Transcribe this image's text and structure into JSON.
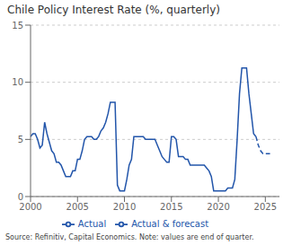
{
  "chart_data": {
    "type": "line",
    "title": "Chile Policy Interest Rate (%, quarterly)",
    "annotations": [
      "Source: Refinitiv, Capital Economics. Note: values are end of quarter."
    ],
    "xlim": [
      2000,
      2026.5
    ],
    "xticks": [
      2000,
      2005,
      2010,
      2015,
      2020,
      2025
    ],
    "ylim": [
      0,
      15
    ],
    "yticks": [
      0,
      5,
      10,
      15
    ],
    "grid": "y",
    "legend": "bottom",
    "series": [
      {
        "name": "Actual",
        "color": "#2255aa",
        "line_style": "solid",
        "x": [
          2000.0,
          2000.25,
          2000.5,
          2000.75,
          2001.0,
          2001.25,
          2001.5,
          2001.75,
          2002.0,
          2002.25,
          2002.5,
          2002.75,
          2003.0,
          2003.25,
          2003.5,
          2003.75,
          2004.0,
          2004.25,
          2004.5,
          2004.75,
          2005.0,
          2005.25,
          2005.5,
          2005.75,
          2006.0,
          2006.25,
          2006.5,
          2006.75,
          2007.0,
          2007.25,
          2007.5,
          2007.75,
          2008.0,
          2008.25,
          2008.5,
          2008.75,
          2009.0,
          2009.25,
          2009.5,
          2009.75,
          2010.0,
          2010.25,
          2010.5,
          2010.75,
          2011.0,
          2011.25,
          2011.5,
          2011.75,
          2012.0,
          2012.25,
          2012.5,
          2012.75,
          2013.0,
          2013.25,
          2013.5,
          2013.75,
          2014.0,
          2014.25,
          2014.5,
          2014.75,
          2015.0,
          2015.25,
          2015.5,
          2015.75,
          2016.0,
          2016.25,
          2016.5,
          2016.75,
          2017.0,
          2017.25,
          2017.5,
          2017.75,
          2018.0,
          2018.25,
          2018.5,
          2018.75,
          2019.0,
          2019.25,
          2019.5,
          2019.75,
          2020.0,
          2020.25,
          2020.5,
          2020.75,
          2021.0,
          2021.25,
          2021.5,
          2021.75,
          2022.0,
          2022.25,
          2022.5,
          2022.75,
          2023.0,
          2023.25,
          2023.5,
          2023.75,
          2024.0
        ],
        "values": [
          5.25,
          5.5,
          5.5,
          5.0,
          4.25,
          4.5,
          6.5,
          5.5,
          4.75,
          4.0,
          3.75,
          3.0,
          3.0,
          2.75,
          2.25,
          1.75,
          1.75,
          1.75,
          2.25,
          2.25,
          3.25,
          3.25,
          4.0,
          5.0,
          5.25,
          5.25,
          5.25,
          5.0,
          5.0,
          5.25,
          5.75,
          6.0,
          6.5,
          7.25,
          8.25,
          8.25,
          8.25,
          1.0,
          0.5,
          0.5,
          0.5,
          1.5,
          2.75,
          3.25,
          5.25,
          5.25,
          5.25,
          5.25,
          5.25,
          5.0,
          5.0,
          5.0,
          5.0,
          5.0,
          4.5,
          4.0,
          3.5,
          3.25,
          3.0,
          3.0,
          5.25,
          5.25,
          5.0,
          3.5,
          3.5,
          3.5,
          3.25,
          3.25,
          2.75,
          2.75,
          2.75,
          2.75,
          2.75,
          2.75,
          2.75,
          2.5,
          2.25,
          1.75,
          0.5,
          0.5,
          0.5,
          0.5,
          0.5,
          0.5,
          0.75,
          0.75,
          0.75,
          1.5,
          5.0,
          9.0,
          11.25,
          11.25,
          11.25,
          9.0,
          7.25,
          5.5,
          5.25
        ]
      },
      {
        "name": "Actual & forecast",
        "color": "#2255aa",
        "line_style": "dashed",
        "x": [
          2024.0,
          2024.25,
          2024.5,
          2024.75,
          2025.0,
          2025.25,
          2025.5
        ],
        "values": [
          5.25,
          4.5,
          4.0,
          3.75,
          3.75,
          3.75,
          3.75
        ]
      }
    ]
  }
}
